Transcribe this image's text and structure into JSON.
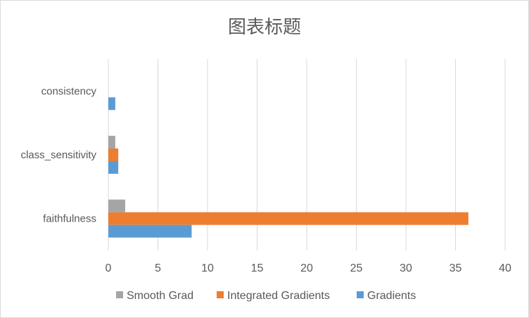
{
  "chart_data": {
    "type": "bar",
    "orientation": "horizontal",
    "title": "图表标题",
    "categories": [
      "faithfulness",
      "class_sensitivity",
      "consistency"
    ],
    "series": [
      {
        "name": "Gradients",
        "color": "#5b9bd5",
        "values": [
          8.4,
          1.0,
          0.7
        ]
      },
      {
        "name": "Integrated Gradients",
        "color": "#ed7d31",
        "values": [
          36.3,
          1.0,
          0.0
        ]
      },
      {
        "name": "Smooth Grad",
        "color": "#a5a5a5",
        "values": [
          1.7,
          0.7,
          0.0
        ]
      }
    ],
    "xlim": [
      0,
      40
    ],
    "xticks": [
      0,
      5,
      10,
      15,
      20,
      25,
      30,
      35,
      40
    ],
    "legend_order": [
      "Smooth Grad",
      "Integrated Gradients",
      "Gradients"
    ],
    "legend_position": "bottom",
    "grid": "vertical"
  }
}
